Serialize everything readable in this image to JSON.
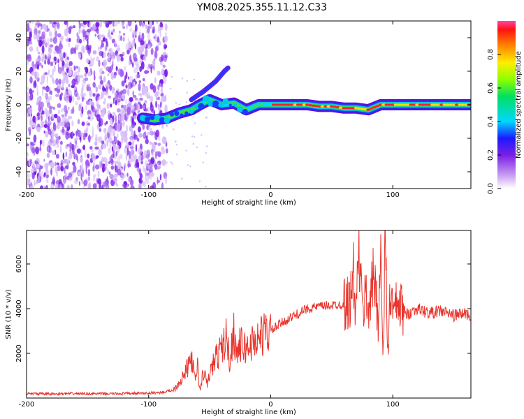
{
  "title": "YM08.2025.355.11.12.C33",
  "colors": {
    "snr_line": "#e8342c",
    "scatter_purple": "#8a2be2",
    "frame": "#000000"
  },
  "chart_data": [
    {
      "type": "heatmap",
      "name": "spectrogram",
      "xlabel": "Height of straight line (km)",
      "ylabel": "Frequency (Hz)",
      "xlim": [
        -200,
        164
      ],
      "ylim": [
        -50,
        50
      ],
      "xticks": [
        -200,
        -100,
        0,
        100
      ],
      "yticks": [
        -40,
        -20,
        0,
        20,
        40
      ],
      "colorbar": {
        "label": "Normalized spectral amplitude",
        "range": [
          0,
          1
        ],
        "ticks": [
          "0.0",
          "0.2",
          "0.4",
          "0.6",
          "0.8"
        ],
        "tick_values": [
          0,
          0.2,
          0.4,
          0.6,
          0.8
        ]
      },
      "track": [
        {
          "x": -105,
          "y": -8
        },
        {
          "x": -95,
          "y": -9
        },
        {
          "x": -85,
          "y": -8
        },
        {
          "x": -75,
          "y": -5
        },
        {
          "x": -65,
          "y": -3
        },
        {
          "x": -58,
          "y": 0
        },
        {
          "x": -50,
          "y": 3
        },
        {
          "x": -40,
          "y": 0
        },
        {
          "x": -30,
          "y": 1
        },
        {
          "x": -20,
          "y": -3
        },
        {
          "x": -10,
          "y": 0
        },
        {
          "x": 0,
          "y": 0
        },
        {
          "x": 10,
          "y": 0
        },
        {
          "x": 20,
          "y": 0
        },
        {
          "x": 30,
          "y": 0
        },
        {
          "x": 40,
          "y": -1
        },
        {
          "x": 50,
          "y": -1
        },
        {
          "x": 60,
          "y": -2
        },
        {
          "x": 70,
          "y": -2
        },
        {
          "x": 80,
          "y": -3
        },
        {
          "x": 90,
          "y": 0
        },
        {
          "x": 100,
          "y": 0
        },
        {
          "x": 110,
          "y": 0
        },
        {
          "x": 120,
          "y": 0
        },
        {
          "x": 140,
          "y": 0
        },
        {
          "x": 164,
          "y": 0
        }
      ],
      "branch": [
        {
          "x": -65,
          "y": 3
        },
        {
          "x": -55,
          "y": 8
        },
        {
          "x": -45,
          "y": 14
        },
        {
          "x": -38,
          "y": 20
        },
        {
          "x": -35,
          "y": 22
        }
      ],
      "noise_region": {
        "xmin": -200,
        "xmax": -85
      }
    },
    {
      "type": "line",
      "name": "snr",
      "xlabel": "Height of straight line (km)",
      "ylabel": "SNR (10 * v/v)",
      "xlim": [
        -200,
        164
      ],
      "ylim": [
        0,
        7500
      ],
      "xticks": [
        -200,
        -100,
        0,
        100
      ],
      "yticks": [
        2000,
        4000,
        6000
      ],
      "series": [
        {
          "name": "SNR",
          "x": [
            -200,
            -180,
            -160,
            -140,
            -120,
            -100,
            -90,
            -80,
            -75,
            -70,
            -65,
            -62,
            -60,
            -58,
            -55,
            -52,
            -50,
            -45,
            -40,
            -36,
            -34,
            -30,
            -28,
            -25,
            -20,
            -15,
            -10,
            -5,
            0,
            10,
            20,
            30,
            40,
            50,
            60,
            65,
            68,
            70,
            72,
            75,
            78,
            80,
            85,
            88,
            90,
            92,
            94,
            96,
            98,
            100,
            105,
            110,
            120,
            130,
            140,
            150,
            160,
            164
          ],
          "y": [
            200,
            180,
            200,
            190,
            200,
            220,
            250,
            350,
            700,
            1100,
            1800,
            800,
            1500,
            300,
            1200,
            600,
            1100,
            1800,
            2200,
            2800,
            1600,
            3000,
            2000,
            2400,
            2200,
            2500,
            2700,
            2900,
            3000,
            3400,
            3700,
            4000,
            4100,
            4150,
            4200,
            4300,
            5500,
            3600,
            6800,
            3800,
            4600,
            4100,
            5500,
            3500,
            6600,
            1500,
            7400,
            1800,
            5000,
            3800,
            4200,
            3700,
            4000,
            3800,
            3900,
            3700,
            3800,
            3600
          ]
        }
      ]
    }
  ]
}
